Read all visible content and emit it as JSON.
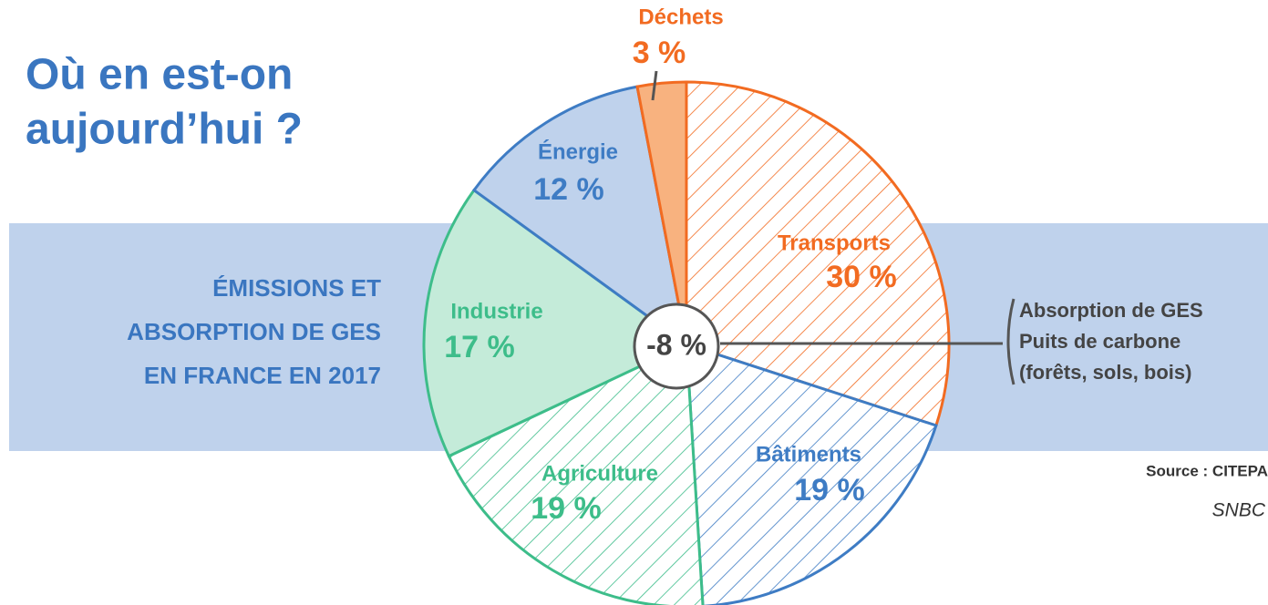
{
  "chart_data": {
    "type": "pie",
    "title": [
      "Où en est-on",
      "aujourd’hui ?"
    ],
    "subtitle": [
      "ÉMISSIONS ET",
      "ABSORPTION DE GES",
      "EN FRANCE EN 2017"
    ],
    "categories": [
      "Transports",
      "Bâtiments",
      "Agriculture",
      "Industrie",
      "Énergie",
      "Déchets"
    ],
    "values": [
      30,
      19,
      19,
      17,
      12,
      3
    ],
    "value_labels": [
      "30 %",
      "19 %",
      "19 %",
      "17 %",
      "12 %",
      "3 %"
    ],
    "colors": [
      "#f26b21",
      "#3e7cc4",
      "#3dbd8a",
      "#3dbd8a",
      "#3e7cc4",
      "#f26b21"
    ],
    "fills": [
      "#ffffff",
      "#ffffff",
      "#ffffff",
      "#c4ebd9",
      "#bfd2ec",
      "#f8b27f"
    ],
    "patterns": [
      "hatch",
      "hatch",
      "hatch",
      "solid",
      "solid",
      "solid"
    ],
    "absorption": {
      "value": -8,
      "value_label": "-8 %",
      "lines": [
        "Absorption de GES",
        "Puits de carbone",
        "(forêts, sols, bois)"
      ]
    },
    "source": "Source : CITEPA",
    "credit": "SNBC"
  }
}
